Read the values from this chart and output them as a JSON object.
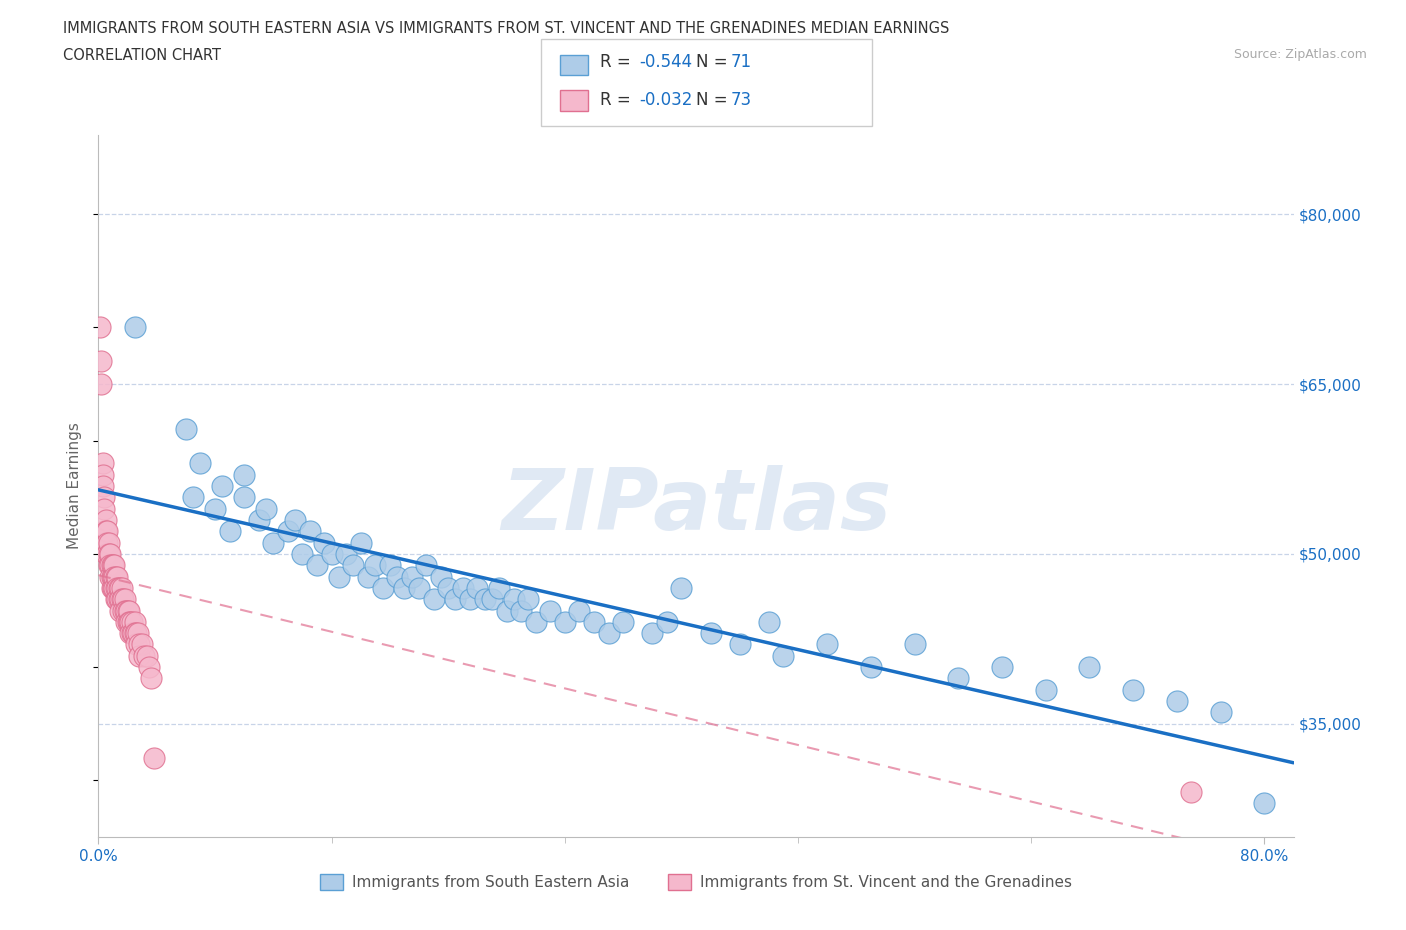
{
  "title_line1": "IMMIGRANTS FROM SOUTH EASTERN ASIA VS IMMIGRANTS FROM ST. VINCENT AND THE GRENADINES MEDIAN EARNINGS",
  "title_line2": "CORRELATION CHART",
  "source_text": "Source: ZipAtlas.com",
  "ylabel": "Median Earnings",
  "x_min": 0.0,
  "x_max": 0.82,
  "y_min": 25000,
  "y_max": 87000,
  "y_ticks": [
    35000,
    50000,
    65000,
    80000
  ],
  "y_tick_labels": [
    "$35,000",
    "$50,000",
    "$65,000",
    "$80,000"
  ],
  "x_ticks": [
    0.0,
    0.8
  ],
  "x_tick_labels": [
    "0.0%",
    "80.0%"
  ],
  "watermark": "ZIPatlas",
  "series1_label": "Immigrants from South Eastern Asia",
  "series1_color": "#aecce8",
  "series1_edge_color": "#5a9fd4",
  "series1_line_color": "#1a6fc4",
  "series1_R": "-0.544",
  "series1_N": "71",
  "series2_label": "Immigrants from St. Vincent and the Grenadines",
  "series2_color": "#f5b8cc",
  "series2_edge_color": "#e07090",
  "series2_line_color": "#e07090",
  "series2_R": "-0.032",
  "series2_N": "73",
  "R_N_color": "#1a6fc4",
  "grid_color": "#c8d4e8",
  "background_color": "#ffffff",
  "series1_x": [
    0.025,
    0.06,
    0.065,
    0.07,
    0.08,
    0.085,
    0.09,
    0.1,
    0.1,
    0.11,
    0.115,
    0.12,
    0.13,
    0.135,
    0.14,
    0.145,
    0.15,
    0.155,
    0.16,
    0.165,
    0.17,
    0.175,
    0.18,
    0.185,
    0.19,
    0.195,
    0.2,
    0.205,
    0.21,
    0.215,
    0.22,
    0.225,
    0.23,
    0.235,
    0.24,
    0.245,
    0.25,
    0.255,
    0.26,
    0.265,
    0.27,
    0.275,
    0.28,
    0.285,
    0.29,
    0.295,
    0.3,
    0.31,
    0.32,
    0.33,
    0.34,
    0.35,
    0.36,
    0.38,
    0.39,
    0.4,
    0.42,
    0.44,
    0.46,
    0.47,
    0.5,
    0.53,
    0.56,
    0.59,
    0.62,
    0.65,
    0.68,
    0.71,
    0.74,
    0.77,
    0.8
  ],
  "series1_y": [
    70000,
    61000,
    55000,
    58000,
    54000,
    56000,
    52000,
    55000,
    57000,
    53000,
    54000,
    51000,
    52000,
    53000,
    50000,
    52000,
    49000,
    51000,
    50000,
    48000,
    50000,
    49000,
    51000,
    48000,
    49000,
    47000,
    49000,
    48000,
    47000,
    48000,
    47000,
    49000,
    46000,
    48000,
    47000,
    46000,
    47000,
    46000,
    47000,
    46000,
    46000,
    47000,
    45000,
    46000,
    45000,
    46000,
    44000,
    45000,
    44000,
    45000,
    44000,
    43000,
    44000,
    43000,
    44000,
    47000,
    43000,
    42000,
    44000,
    41000,
    42000,
    40000,
    42000,
    39000,
    40000,
    38000,
    40000,
    38000,
    37000,
    36000,
    28000
  ],
  "series2_x": [
    0.001,
    0.002,
    0.002,
    0.003,
    0.003,
    0.003,
    0.004,
    0.004,
    0.004,
    0.005,
    0.005,
    0.005,
    0.005,
    0.006,
    0.006,
    0.006,
    0.007,
    0.007,
    0.007,
    0.008,
    0.008,
    0.008,
    0.009,
    0.009,
    0.009,
    0.01,
    0.01,
    0.01,
    0.011,
    0.011,
    0.011,
    0.012,
    0.012,
    0.012,
    0.013,
    0.013,
    0.013,
    0.014,
    0.014,
    0.015,
    0.015,
    0.015,
    0.016,
    0.016,
    0.017,
    0.017,
    0.018,
    0.018,
    0.019,
    0.019,
    0.02,
    0.02,
    0.021,
    0.021,
    0.022,
    0.022,
    0.023,
    0.023,
    0.024,
    0.025,
    0.025,
    0.026,
    0.026,
    0.027,
    0.028,
    0.028,
    0.03,
    0.031,
    0.033,
    0.035,
    0.036,
    0.038,
    0.75
  ],
  "series2_y": [
    70000,
    67000,
    65000,
    58000,
    57000,
    56000,
    55000,
    54000,
    52000,
    53000,
    52000,
    51000,
    50000,
    52000,
    51000,
    50000,
    51000,
    50000,
    49000,
    50000,
    49000,
    48000,
    49000,
    48000,
    47000,
    49000,
    48000,
    47000,
    49000,
    48000,
    47000,
    48000,
    47000,
    46000,
    48000,
    47000,
    46000,
    47000,
    46000,
    47000,
    46000,
    45000,
    47000,
    46000,
    46000,
    45000,
    46000,
    45000,
    45000,
    44000,
    45000,
    44000,
    45000,
    44000,
    44000,
    43000,
    44000,
    43000,
    43000,
    44000,
    43000,
    43000,
    42000,
    43000,
    42000,
    41000,
    42000,
    41000,
    41000,
    40000,
    39000,
    32000,
    29000
  ]
}
